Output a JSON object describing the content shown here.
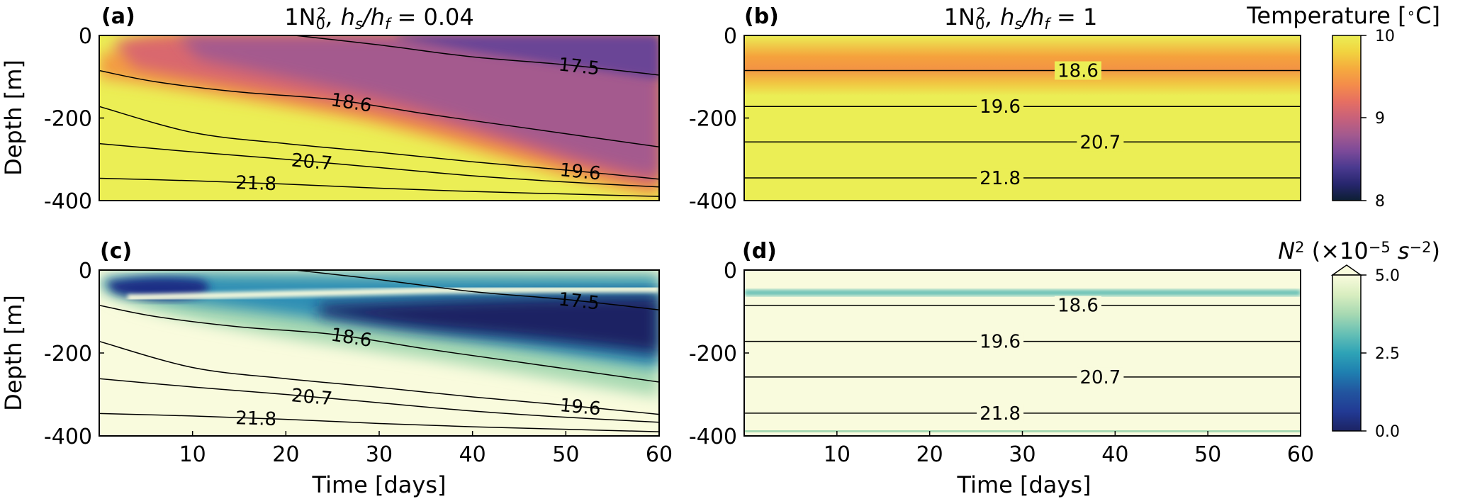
{
  "figure": {
    "xlabel": "Time [days]",
    "ylabel": "Depth [m]",
    "x_ticks": [
      "10",
      "20",
      "30",
      "40",
      "50",
      "60"
    ],
    "y_ticks": [
      "0",
      "-200",
      "-400"
    ]
  },
  "colors": {
    "temp_stops": [
      "#0d1f33",
      "#27266e",
      "#4a3a8f",
      "#7c4a99",
      "#a45a8e",
      "#c8617a",
      "#e66f62",
      "#f48c4a",
      "#f5ab3e",
      "#f1d33f",
      "#ebee55"
    ],
    "n2_stops": [
      "#1c2363",
      "#223a94",
      "#22559f",
      "#1f7fb0",
      "#2ea3b6",
      "#67c0b5",
      "#a7d9b2",
      "#d9eec0",
      "#f9fbdd"
    ],
    "contour": "#000000"
  },
  "chart_data": [
    {
      "panel": "(a)",
      "type": "contour",
      "title": "1N_0^2, h_s/h_f = 0.04",
      "title_parts": [
        "1N",
        "0",
        "2",
        ", h",
        "s",
        "/h",
        "f",
        " = 0.04"
      ],
      "field": "Temperature",
      "xlim": [
        0,
        60
      ],
      "ylim": [
        -400,
        0
      ],
      "contours": [
        {
          "label": "17.5",
          "points": [
            [
              21,
              0
            ],
            [
              30,
              -23
            ],
            [
              40,
              -52
            ],
            [
              50,
              -71
            ],
            [
              60,
              -96
            ]
          ]
        },
        {
          "label": "18.6",
          "points": [
            [
              0,
              -85
            ],
            [
              6,
              -112
            ],
            [
              15,
              -137
            ],
            [
              25,
              -155
            ],
            [
              35,
              -190
            ],
            [
              45,
              -222
            ],
            [
              60,
              -270
            ]
          ]
        },
        {
          "label": "19.6",
          "points": [
            [
              0,
              -172
            ],
            [
              10,
              -235
            ],
            [
              20,
              -262
            ],
            [
              30,
              -283
            ],
            [
              40,
              -306
            ],
            [
              50,
              -326
            ],
            [
              60,
              -348
            ]
          ]
        },
        {
          "label": "20.7",
          "points": [
            [
              0,
              -262
            ],
            [
              10,
              -282
            ],
            [
              20,
              -300
            ],
            [
              30,
              -320
            ],
            [
              40,
              -340
            ],
            [
              50,
              -355
            ],
            [
              60,
              -367
            ]
          ]
        },
        {
          "label": "21.8",
          "points": [
            [
              0,
              -346
            ],
            [
              10,
              -352
            ],
            [
              20,
              -360
            ],
            [
              30,
              -370
            ],
            [
              40,
              -378
            ],
            [
              50,
              -384
            ],
            [
              60,
              -390
            ]
          ]
        }
      ]
    },
    {
      "panel": "(b)",
      "type": "contour",
      "title": "1N_0^2, h_s/h_f = 1",
      "title_parts": [
        "1N",
        "0",
        "2",
        ", h",
        "s",
        "/h",
        "f",
        " = 1"
      ],
      "field": "Temperature",
      "xlim": [
        0,
        60
      ],
      "ylim": [
        -400,
        0
      ],
      "contours": [
        {
          "label": "18.6",
          "points": [
            [
              0,
              -85
            ],
            [
              60,
              -85
            ]
          ]
        },
        {
          "label": "19.6",
          "points": [
            [
              0,
              -172
            ],
            [
              60,
              -172
            ]
          ]
        },
        {
          "label": "20.7",
          "points": [
            [
              0,
              -258
            ],
            [
              60,
              -258
            ]
          ]
        },
        {
          "label": "21.8",
          "points": [
            [
              0,
              -345
            ],
            [
              60,
              -345
            ]
          ]
        }
      ]
    },
    {
      "panel": "(c)",
      "type": "contour",
      "title": "",
      "field": "N2",
      "xlim": [
        0,
        60
      ],
      "ylim": [
        -400,
        0
      ],
      "contours": [
        {
          "label": "17.5",
          "points": [
            [
              21,
              0
            ],
            [
              30,
              -23
            ],
            [
              40,
              -52
            ],
            [
              50,
              -71
            ],
            [
              60,
              -96
            ]
          ]
        },
        {
          "label": "18.6",
          "points": [
            [
              0,
              -85
            ],
            [
              6,
              -112
            ],
            [
              15,
              -137
            ],
            [
              25,
              -155
            ],
            [
              35,
              -190
            ],
            [
              45,
              -222
            ],
            [
              60,
              -270
            ]
          ]
        },
        {
          "label": "19.6",
          "points": [
            [
              0,
              -172
            ],
            [
              10,
              -235
            ],
            [
              20,
              -262
            ],
            [
              30,
              -283
            ],
            [
              40,
              -306
            ],
            [
              50,
              -326
            ],
            [
              60,
              -348
            ]
          ]
        },
        {
          "label": "20.7",
          "points": [
            [
              0,
              -262
            ],
            [
              10,
              -282
            ],
            [
              20,
              -300
            ],
            [
              30,
              -320
            ],
            [
              40,
              -340
            ],
            [
              50,
              -355
            ],
            [
              60,
              -367
            ]
          ]
        },
        {
          "label": "21.8",
          "points": [
            [
              0,
              -346
            ],
            [
              10,
              -352
            ],
            [
              20,
              -360
            ],
            [
              30,
              -370
            ],
            [
              40,
              -378
            ],
            [
              50,
              -384
            ],
            [
              60,
              -390
            ]
          ]
        }
      ]
    },
    {
      "panel": "(d)",
      "type": "contour",
      "title": "",
      "field": "N2",
      "xlim": [
        0,
        60
      ],
      "ylim": [
        -400,
        0
      ],
      "contours": [
        {
          "label": "18.6",
          "points": [
            [
              0,
              -85
            ],
            [
              60,
              -85
            ]
          ]
        },
        {
          "label": "19.6",
          "points": [
            [
              0,
              -172
            ],
            [
              60,
              -172
            ]
          ]
        },
        {
          "label": "20.7",
          "points": [
            [
              0,
              -258
            ],
            [
              60,
              -258
            ]
          ]
        },
        {
          "label": "21.8",
          "points": [
            [
              0,
              -345
            ],
            [
              60,
              -345
            ]
          ]
        }
      ]
    }
  ],
  "colorbars": {
    "temperature": {
      "title": "Temperature [°C]",
      "title_parts": [
        "Temperature [",
        "∘",
        "C]"
      ],
      "ticks": [
        "10",
        "9",
        "8"
      ],
      "range": [
        8,
        10
      ]
    },
    "n2": {
      "title": "N^2 (×10^-5 s^-2)",
      "title_parts": [
        "N",
        "2",
        " (×10",
        "−5",
        " s",
        "−2",
        ")"
      ],
      "ticks": [
        "5.0",
        "2.5",
        "0.0"
      ],
      "range": [
        0,
        5
      ],
      "extend": "max"
    }
  }
}
